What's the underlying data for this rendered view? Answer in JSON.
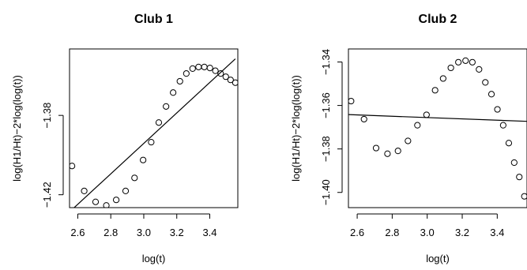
{
  "chart_data": [
    {
      "type": "scatter",
      "title": "Club 1",
      "xlabel": "log(t)",
      "ylabel": "log(H1/Ht)−2*log(log(t))",
      "xlim": [
        2.55,
        3.57
      ],
      "ylim": [
        -1.4265,
        -1.3465
      ],
      "xticks": [
        2.6,
        2.8,
        3.0,
        3.2,
        3.4
      ],
      "xtick_labels": [
        "2.6",
        "2.8",
        "3.0",
        "3.2",
        "3.4"
      ],
      "yticks": [
        -1.42,
        -1.38
      ],
      "ytick_labels": [
        "−1.42",
        "−1.38"
      ],
      "grid": false,
      "series": [
        {
          "marker": "open-circle",
          "x": [
            2.565,
            2.639,
            2.708,
            2.773,
            2.833,
            2.89,
            2.944,
            2.996,
            3.045,
            3.091,
            3.135,
            3.178,
            3.219,
            3.258,
            3.296,
            3.332,
            3.367,
            3.401,
            3.434,
            3.466,
            3.497,
            3.526,
            3.555
          ],
          "y": [
            -1.4055,
            -1.4181,
            -1.4236,
            -1.4254,
            -1.4226,
            -1.4181,
            -1.4115,
            -1.4025,
            -1.3935,
            -1.3836,
            -1.3755,
            -1.3685,
            -1.3628,
            -1.3589,
            -1.3564,
            -1.3556,
            -1.3556,
            -1.3561,
            -1.3575,
            -1.3589,
            -1.3605,
            -1.3621,
            -1.3635
          ]
        }
      ],
      "fit_line": {
        "x": [
          2.565,
          3.555
        ],
        "y": [
          -1.4275,
          -1.3515
        ]
      }
    },
    {
      "type": "scatter",
      "title": "Club 2",
      "xlabel": "log(t)",
      "ylabel": "log(H1/Ht)−2*log(log(t))",
      "xlim": [
        2.55,
        3.57
      ],
      "ylim": [
        -1.407,
        -1.334
      ],
      "xticks": [
        2.6,
        2.8,
        3.0,
        3.2,
        3.4
      ],
      "xtick_labels": [
        "2.6",
        "2.8",
        "3.0",
        "3.2",
        "3.4"
      ],
      "yticks": [
        -1.4,
        -1.38,
        -1.36,
        -1.34
      ],
      "ytick_labels": [
        "−1.40",
        "−1.38",
        "−1.36",
        "−1.34"
      ],
      "grid": false,
      "series": [
        {
          "marker": "open-circle",
          "x": [
            2.565,
            2.639,
            2.708,
            2.773,
            2.833,
            2.89,
            2.944,
            2.996,
            3.045,
            3.091,
            3.135,
            3.178,
            3.219,
            3.258,
            3.296,
            3.332,
            3.367,
            3.401,
            3.434,
            3.466,
            3.497,
            3.526,
            3.555
          ],
          "y": [
            -1.358,
            -1.3663,
            -1.3796,
            -1.3822,
            -1.3809,
            -1.3763,
            -1.3691,
            -1.3643,
            -1.353,
            -1.3476,
            -1.3427,
            -1.3401,
            -1.3394,
            -1.3401,
            -1.3434,
            -1.3494,
            -1.3548,
            -1.3618,
            -1.3691,
            -1.3773,
            -1.3863,
            -1.3929,
            -1.4018
          ]
        }
      ],
      "fit_line": {
        "x": [
          2.55,
          3.57
        ],
        "y": [
          -1.3642,
          -1.3673
        ]
      }
    }
  ]
}
